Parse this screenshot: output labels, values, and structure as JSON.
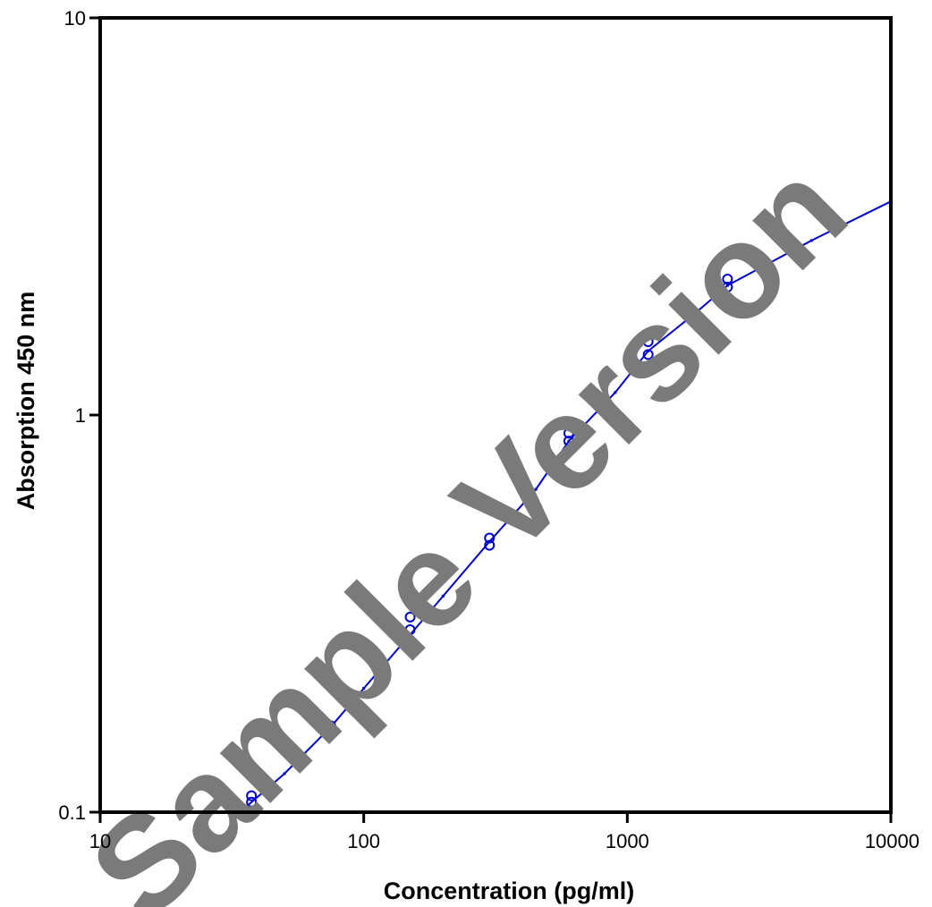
{
  "chart_data": {
    "type": "scatter",
    "title": "",
    "xlabel": "Concentration (pg/ml)",
    "ylabel": "Absorption  450 nm",
    "xscale": "log",
    "yscale": "log",
    "xlim": [
      10,
      10000
    ],
    "ylim": [
      0.1,
      10
    ],
    "xticks": [
      10,
      100,
      1000,
      10000
    ],
    "xtick_labels": [
      "10",
      "100",
      "1000",
      "10000"
    ],
    "yticks": [
      0.1,
      1,
      10
    ],
    "ytick_labels": [
      "0.1",
      "1",
      "10"
    ],
    "grid": false,
    "legend": "none",
    "series": [
      {
        "kind": "points",
        "marker": "open-circle",
        "color": "#0000cc",
        "x": [
          37.5,
          37.5,
          75,
          75,
          150,
          150,
          300,
          300,
          600,
          600,
          1200,
          1200,
          2400,
          2400
        ],
        "y": [
          0.106,
          0.11,
          0.164,
          0.165,
          0.31,
          0.288,
          0.47,
          0.49,
          0.86,
          0.9,
          1.42,
          1.53,
          2.1,
          2.2
        ]
      },
      {
        "kind": "fit-line",
        "color": "#0000cc",
        "x": [
          31,
          50,
          75,
          100,
          150,
          200,
          300,
          450,
          600,
          900,
          1200,
          1800,
          2400,
          5000,
          10000
        ],
        "y": [
          0.095,
          0.125,
          0.164,
          0.205,
          0.28,
          0.35,
          0.48,
          0.65,
          0.86,
          1.14,
          1.45,
          1.8,
          2.12,
          2.75,
          3.45
        ]
      }
    ]
  },
  "watermark": {
    "text": "Sample Version",
    "color": "#7a7a7a"
  }
}
